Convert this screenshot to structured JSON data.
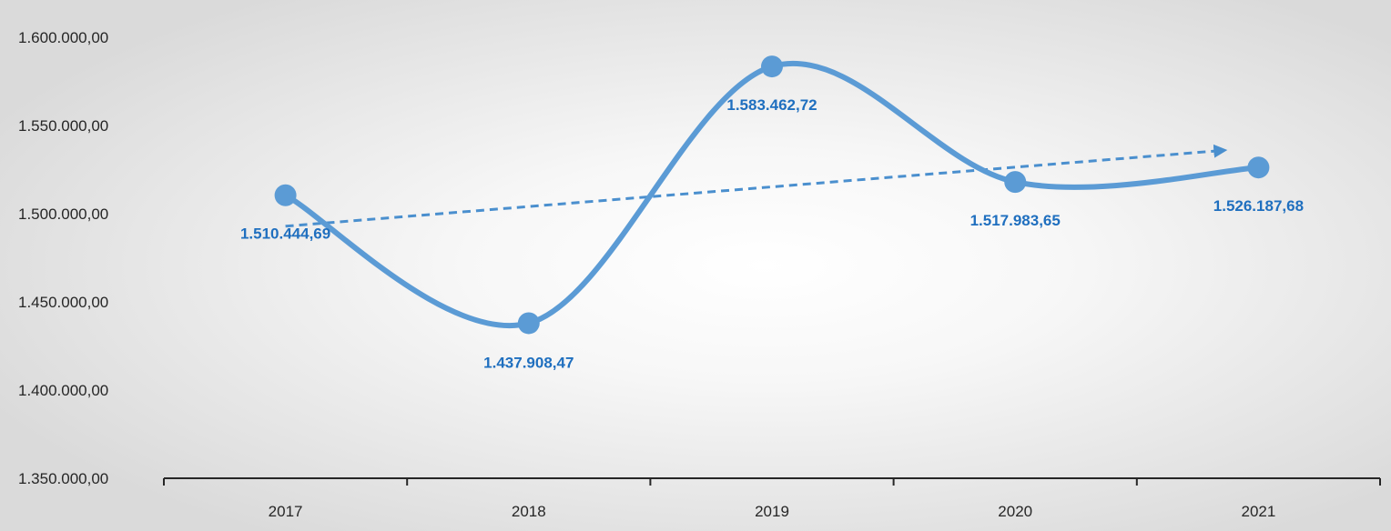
{
  "chart_data": {
    "type": "line",
    "title": "",
    "xlabel": "",
    "ylabel": "",
    "categories": [
      "2017",
      "2018",
      "2019",
      "2020",
      "2021"
    ],
    "series": [
      {
        "values": [
          1510444.69,
          1437908.47,
          1583462.72,
          1517983.65,
          1526187.68
        ],
        "data_labels": [
          "1.510.444,69",
          "1.437.908,47",
          "1.583.462,72",
          "1.517.983,65",
          "1.526.187,68"
        ],
        "smooth": true,
        "markers": true,
        "trendline": "linear"
      }
    ],
    "ylim": [
      1350000,
      1600000
    ],
    "y_ticks": [
      1350000,
      1400000,
      1450000,
      1500000,
      1550000,
      1600000
    ],
    "y_tick_labels": [
      "1.350.000,00",
      "1.400.000,00",
      "1.450.000,00",
      "1.500.000,00",
      "1.550.000,00",
      "1.600.000,00"
    ],
    "grid": false,
    "legend": "none",
    "colors": {
      "line": "#5b9bd5",
      "trend": "#4a8fce",
      "label": "#1f6fbf",
      "axis": "#262626",
      "bg_center": "#ffffff",
      "bg_edge": "#dadada"
    }
  }
}
